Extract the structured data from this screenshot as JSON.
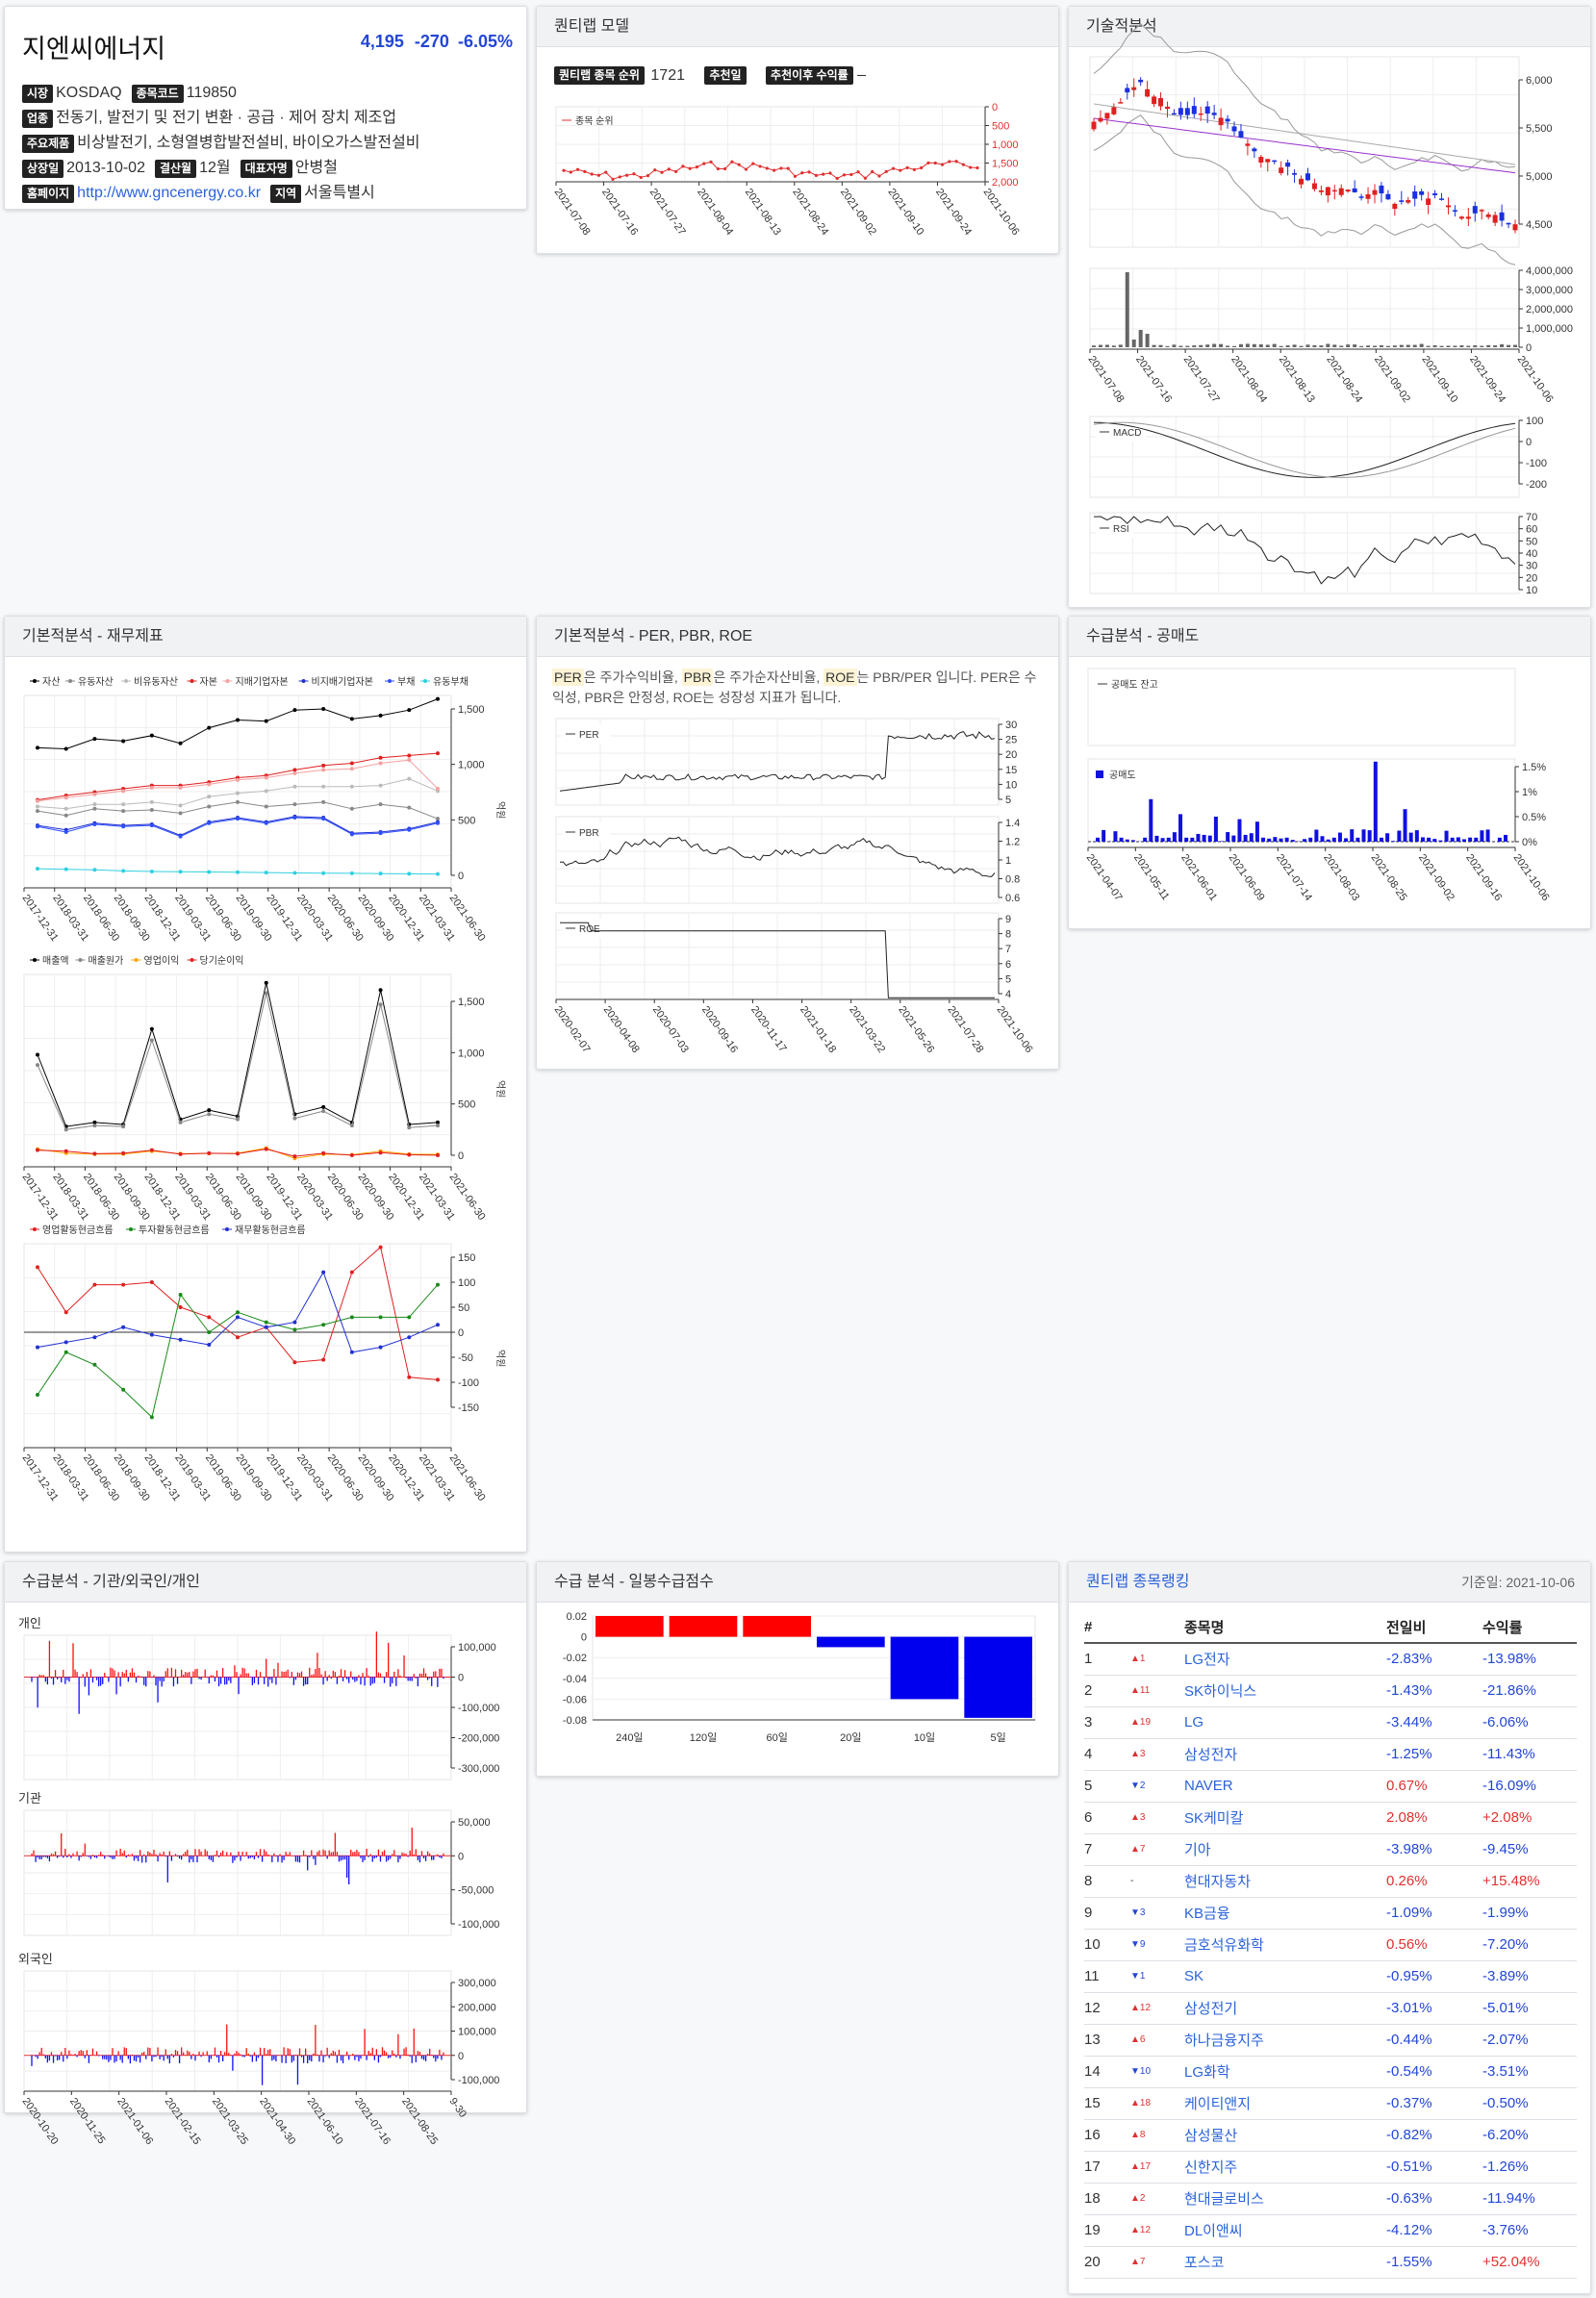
{
  "stock": {
    "name": "지엔씨에너지",
    "price": "4,195",
    "change": "-270",
    "change_pct": "-6.05%",
    "labels": {
      "market": "시장",
      "code": "종목코드",
      "industry": "업종",
      "products": "주요제품",
      "listed": "상장일",
      "fiscal": "결산월",
      "ceo": "대표자명",
      "homepage": "홈페이지",
      "region": "지역"
    },
    "market": "KOSDAQ",
    "code": "119850",
    "industry": "전동기, 발전기 및 전기 변환 · 공급 · 제어 장치 제조업",
    "products": "비상발전기, 소형열병합발전설비, 바이오가스발전설비",
    "listed": "2013-10-02",
    "fiscal": "12월",
    "ceo": "안병철",
    "homepage": "http://www.gncenergy.co.kr",
    "region": "서울특별시"
  },
  "titles": {
    "model": "퀀티랩 모델",
    "tech": "기술적분석",
    "fund_fin": "기본적분석 - 재무제표",
    "fund_ratio": "기본적분석 - PER, PBR, ROE",
    "short": "수급분석 - 공매도",
    "investor": "수급분석 - 기관/외국인/개인",
    "supply": "수급 분석 - 일봉수급점수",
    "ranking": "퀀티랩 종목랭킹"
  },
  "model": {
    "rank_label": "퀀티랩 종목 순위",
    "rank_value": "1721",
    "rec_label": "추천일",
    "ret_label": "추천이후 수익률",
    "ret_value": "–",
    "legend": "종목 순위",
    "y_ticks": [
      "0",
      "500",
      "1,000",
      "1,500",
      "2,000"
    ],
    "x_ticks": [
      "2021-07-08",
      "2021-07-16",
      "2021-07-27",
      "2021-08-04",
      "2021-08-13",
      "2021-08-24",
      "2021-09-02",
      "2021-09-10",
      "2021-09-24",
      "2021-10-06"
    ]
  },
  "tech": {
    "price_ticks": [
      "6,000",
      "5,500",
      "5,000",
      "4,500"
    ],
    "vol_ticks": [
      "4,000,000",
      "3,000,000",
      "2,000,000",
      "1,000,000",
      "0"
    ],
    "x_ticks": [
      "2021-07-08",
      "2021-07-16",
      "2021-07-27",
      "2021-08-04",
      "2021-08-13",
      "2021-08-24",
      "2021-09-02",
      "2021-09-10",
      "2021-09-24",
      "2021-10-06"
    ],
    "macd_label": "MACD",
    "macd_ticks": [
      "100",
      "0",
      "-100",
      "-200"
    ],
    "rsi_label": "RSI",
    "rsi_ticks": [
      "70",
      "60",
      "50",
      "40",
      "30",
      "20",
      "10"
    ]
  },
  "fin": {
    "legend1": [
      "자산",
      "유동자산",
      "비유동자산",
      "자본",
      "지배기업자본",
      "비지배기업자본",
      "부채",
      "유동부채"
    ],
    "legend1_colors": [
      "#000000",
      "#888888",
      "#bbbbbb",
      "#e02020",
      "#f4a0a0",
      "#2030d0",
      "#3050ff",
      "#30d0e0"
    ],
    "ticks1": [
      "1,500",
      "1,000",
      "500",
      "0"
    ],
    "legend2": [
      "매출액",
      "매출원가",
      "영업이익",
      "당기순이익"
    ],
    "legend2_colors": [
      "#000000",
      "#888888",
      "#ffa500",
      "#e02020"
    ],
    "ticks2": [
      "1,500",
      "1,000",
      "500",
      "0"
    ],
    "legend3": [
      "영업활동현금흐름",
      "투자활동현금흐름",
      "재무활동현금흐름"
    ],
    "legend3_colors": [
      "#e02020",
      "#1a8a1a",
      "#2030d0"
    ],
    "ticks3": [
      "150",
      "100",
      "50",
      "0",
      "-50",
      "-100",
      "-150"
    ],
    "unit": "억원",
    "x_ticks": [
      "2017-12-31",
      "2018-03-31",
      "2018-06-30",
      "2018-09-30",
      "2018-12-31",
      "2019-03-31",
      "2019-06-30",
      "2019-09-30",
      "2019-12-31",
      "2020-03-31",
      "2020-06-30",
      "2020-09-30",
      "2020-12-31",
      "2021-03-31",
      "2021-06-30"
    ]
  },
  "ratio": {
    "desc_parts": [
      "PER",
      "은 주가수익비율, ",
      "PBR",
      "은 주가순자산비율, ",
      "ROE",
      "는 PBR/PER 입니다. PER은 수익성, PBR은 안정성, ROE는 성장성 지표가 됩니다."
    ],
    "per_label": "PER",
    "per_ticks": [
      "30",
      "25",
      "20",
      "15",
      "10",
      "5"
    ],
    "pbr_label": "PBR",
    "pbr_ticks": [
      "1.4",
      "1.2",
      "1",
      "0.8",
      "0.6"
    ],
    "roe_label": "ROE",
    "roe_ticks": [
      "9",
      "8",
      "7",
      "6",
      "5",
      "4"
    ],
    "x_ticks": [
      "2020-02-07",
      "2020-04-08",
      "2020-07-03",
      "2020-09-16",
      "2020-11-17",
      "2021-01-18",
      "2021-03-22",
      "2021-05-26",
      "2021-07-28",
      "2021-10-06"
    ]
  },
  "short": {
    "balance_label": "공매도 잔고",
    "volume_label": "공매도",
    "ticks": [
      "1.5%",
      "1%",
      "0.5%",
      "0%"
    ],
    "x_ticks": [
      "2021-04-07",
      "2021-05-11",
      "2021-06-01",
      "2021-06-09",
      "2021-07-14",
      "2021-08-03",
      "2021-08-25",
      "2021-09-02",
      "2021-09-16",
      "2021-10-06"
    ]
  },
  "investor": {
    "individual_label": "개인",
    "individual_ticks": [
      "100,000",
      "0",
      "-100,000",
      "-200,000",
      "-300,000"
    ],
    "institution_label": "기관",
    "institution_ticks": [
      "50,000",
      "0",
      "-50,000",
      "-100,000"
    ],
    "foreign_label": "외국인",
    "foreign_ticks": [
      "300,000",
      "200,000",
      "100,000",
      "0",
      "-100,000"
    ],
    "x_ticks": [
      "2020-10-20",
      "2020-11-25",
      "2021-01-06",
      "2021-02-15",
      "2021-03-25",
      "2021-04-30",
      "2021-06-10",
      "2021-07-16",
      "2021-08-25",
      "9-30"
    ]
  },
  "chart_data": {
    "type": "bar",
    "title": "수급 분석 - 일봉수급점수",
    "categories": [
      "240일",
      "120일",
      "60일",
      "20일",
      "10일",
      "5일"
    ],
    "values": [
      0.02,
      0.02,
      0.02,
      -0.01,
      -0.06,
      -0.078
    ],
    "ylim": [
      -0.08,
      0.02
    ],
    "y_ticks": [
      "0.02",
      "0",
      "-0.02",
      "-0.04",
      "-0.06",
      "-0.08"
    ],
    "colors": {
      "positive": "#ff0000",
      "negative": "#0000ee"
    }
  },
  "ranking": {
    "date": "기준일: 2021-10-06",
    "headers": [
      "#",
      "종목명",
      "전일비",
      "수익률"
    ],
    "rows": [
      {
        "n": "1",
        "mv": "▲1",
        "d": "up",
        "name": "LG전자",
        "chg": "-2.83%",
        "ret": "-13.98%"
      },
      {
        "n": "2",
        "mv": "▲11",
        "d": "up",
        "name": "SK하이닉스",
        "chg": "-1.43%",
        "ret": "-21.86%"
      },
      {
        "n": "3",
        "mv": "▲19",
        "d": "up",
        "name": "LG",
        "chg": "-3.44%",
        "ret": "-6.06%"
      },
      {
        "n": "4",
        "mv": "▲3",
        "d": "up",
        "name": "삼성전자",
        "chg": "-1.25%",
        "ret": "-11.43%"
      },
      {
        "n": "5",
        "mv": "▼2",
        "d": "dn",
        "name": "NAVER",
        "chg": "0.67%",
        "ret": "-16.09%"
      },
      {
        "n": "6",
        "mv": "▲3",
        "d": "up",
        "name": "SK케미칼",
        "chg": "2.08%",
        "ret": "+2.08%"
      },
      {
        "n": "7",
        "mv": "▲7",
        "d": "up",
        "name": "기아",
        "chg": "-3.98%",
        "ret": "-9.45%"
      },
      {
        "n": "8",
        "mv": "-",
        "d": "none",
        "name": "현대자동차",
        "chg": "0.26%",
        "ret": "+15.48%"
      },
      {
        "n": "9",
        "mv": "▼3",
        "d": "dn",
        "name": "KB금융",
        "chg": "-1.09%",
        "ret": "-1.99%"
      },
      {
        "n": "10",
        "mv": "▼9",
        "d": "dn",
        "name": "금호석유화학",
        "chg": "0.56%",
        "ret": "-7.20%"
      },
      {
        "n": "11",
        "mv": "▼1",
        "d": "dn",
        "name": "SK",
        "chg": "-0.95%",
        "ret": "-3.89%"
      },
      {
        "n": "12",
        "mv": "▲12",
        "d": "up",
        "name": "삼성전기",
        "chg": "-3.01%",
        "ret": "-5.01%"
      },
      {
        "n": "13",
        "mv": "▲6",
        "d": "up",
        "name": "하나금융지주",
        "chg": "-0.44%",
        "ret": "-2.07%"
      },
      {
        "n": "14",
        "mv": "▼10",
        "d": "dn",
        "name": "LG화학",
        "chg": "-0.54%",
        "ret": "-3.51%"
      },
      {
        "n": "15",
        "mv": "▲18",
        "d": "up",
        "name": "케이티앤지",
        "chg": "-0.37%",
        "ret": "-0.50%"
      },
      {
        "n": "16",
        "mv": "▲8",
        "d": "up",
        "name": "삼성물산",
        "chg": "-0.82%",
        "ret": "-6.20%"
      },
      {
        "n": "17",
        "mv": "▲17",
        "d": "up",
        "name": "신한지주",
        "chg": "-0.51%",
        "ret": "-1.26%"
      },
      {
        "n": "18",
        "mv": "▲2",
        "d": "up",
        "name": "현대글로비스",
        "chg": "-0.63%",
        "ret": "-11.94%"
      },
      {
        "n": "19",
        "mv": "▲12",
        "d": "up",
        "name": "DL이앤씨",
        "chg": "-4.12%",
        "ret": "-3.76%"
      },
      {
        "n": "20",
        "mv": "▲7",
        "d": "up",
        "name": "포스코",
        "chg": "-1.55%",
        "ret": "+52.04%"
      }
    ]
  }
}
